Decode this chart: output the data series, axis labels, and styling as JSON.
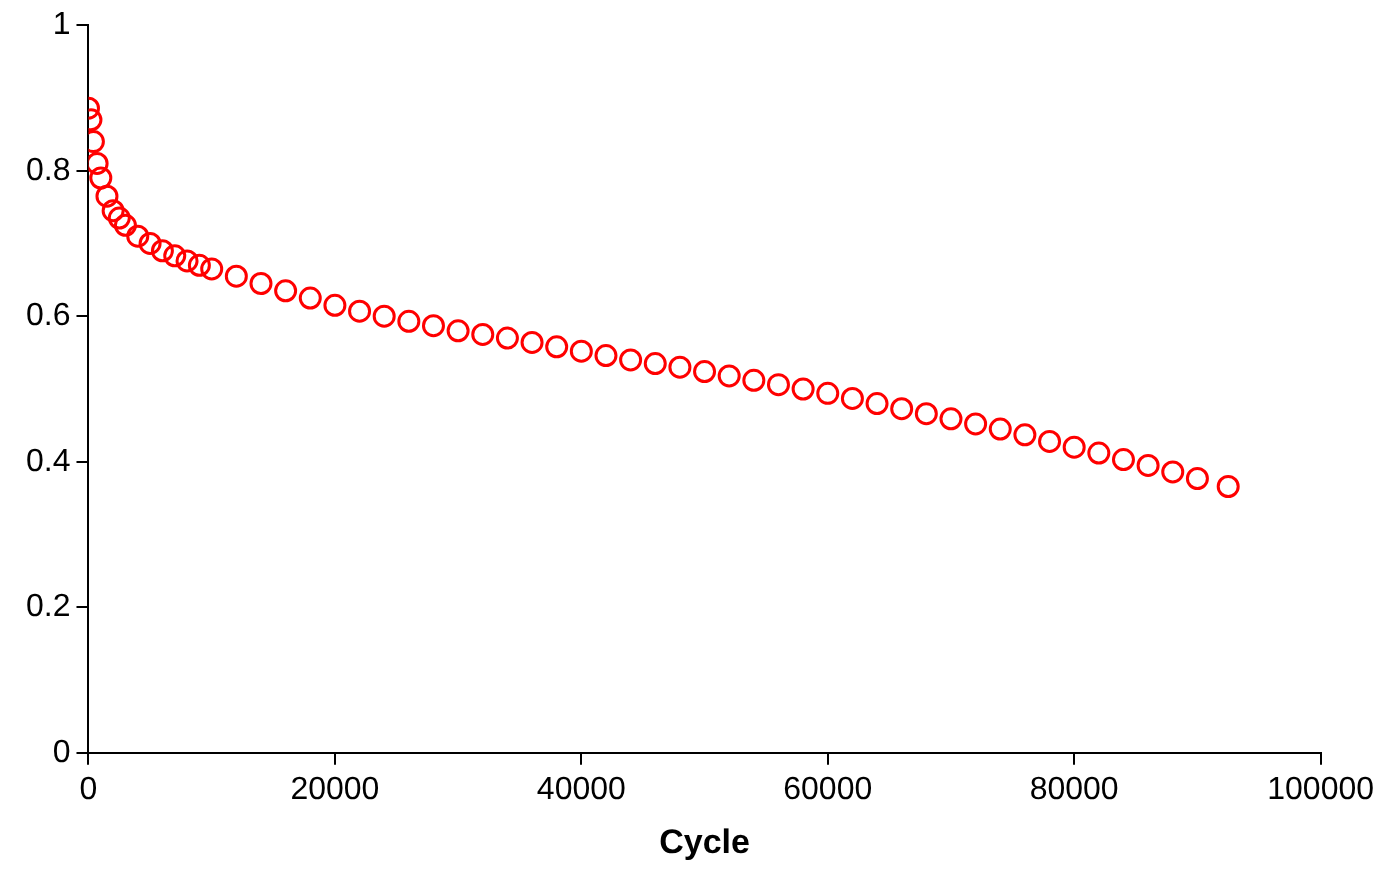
{
  "chart_data": {
    "type": "scatter",
    "xlabel": "Cycle",
    "x": [
      0,
      200,
      400,
      700,
      1000,
      1500,
      2000,
      2500,
      3000,
      4000,
      5000,
      6000,
      7000,
      8000,
      9000,
      10000,
      12000,
      14000,
      16000,
      18000,
      20000,
      22000,
      24000,
      26000,
      28000,
      30000,
      32000,
      34000,
      36000,
      38000,
      40000,
      42000,
      44000,
      46000,
      48000,
      50000,
      52000,
      54000,
      56000,
      58000,
      60000,
      62000,
      64000,
      66000,
      68000,
      70000,
      72000,
      74000,
      76000,
      78000,
      80000,
      82000,
      84000,
      86000,
      88000,
      90000,
      92500
    ],
    "series": [
      {
        "color": "#ff0000",
        "values": [
          0.886,
          0.87,
          0.84,
          0.81,
          0.79,
          0.765,
          0.745,
          0.735,
          0.725,
          0.71,
          0.7,
          0.69,
          0.683,
          0.676,
          0.67,
          0.665,
          0.655,
          0.645,
          0.635,
          0.625,
          0.615,
          0.607,
          0.6,
          0.593,
          0.587,
          0.58,
          0.575,
          0.57,
          0.564,
          0.558,
          0.552,
          0.546,
          0.54,
          0.535,
          0.53,
          0.524,
          0.518,
          0.512,
          0.506,
          0.5,
          0.494,
          0.487,
          0.48,
          0.473,
          0.466,
          0.459,
          0.452,
          0.445,
          0.437,
          0.428,
          0.42,
          0.412,
          0.403,
          0.395,
          0.386,
          0.377,
          0.366
        ]
      }
    ],
    "xlim": [
      0,
      100000
    ],
    "xticks": [
      0,
      20000,
      40000,
      60000,
      80000,
      100000
    ],
    "ylim": [
      0,
      1
    ],
    "yticks": [
      0,
      0.2,
      0.4,
      0.6,
      0.8,
      1
    ],
    "grid": false,
    "legend": false,
    "marker": "circle"
  }
}
